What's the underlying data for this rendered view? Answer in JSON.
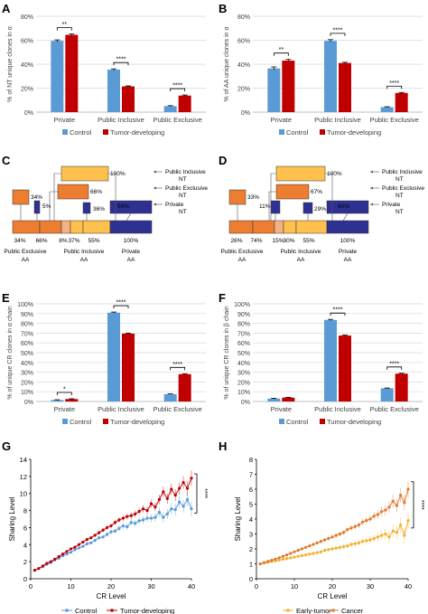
{
  "colors": {
    "control": "#5b9bd5",
    "tumor": "#c00000",
    "early": "#f2b230",
    "cancer": "#e07a2f",
    "flow_yellow": "#ffc04d",
    "flow_orange_light": "#f4b183",
    "flow_orange": "#ed7d31",
    "flow_blue": "#2e3192",
    "grid": "#d9d9d9"
  },
  "panels": {
    "A": {
      "label": "A"
    },
    "B": {
      "label": "B"
    },
    "C": {
      "label": "C"
    },
    "D": {
      "label": "D"
    },
    "E": {
      "label": "E"
    },
    "F": {
      "label": "F"
    },
    "G": {
      "label": "G"
    },
    "H": {
      "label": "H"
    }
  },
  "chart_data": [
    {
      "id": "A",
      "type": "bar",
      "ylabel": "% of NT unique clones in α",
      "categories": [
        "Private",
        "Public Inclusive",
        "Public Exclusive"
      ],
      "series": [
        {
          "name": "Control",
          "values": [
            59.5,
            35.5,
            5.0
          ],
          "errors": [
            0.8,
            0.6,
            0.4
          ]
        },
        {
          "name": "Tumor-developing",
          "values": [
            64.5,
            21.5,
            13.8
          ],
          "errors": [
            0.7,
            0.4,
            0.5
          ]
        }
      ],
      "ylim": [
        0,
        80
      ],
      "yticks": [
        "0%",
        "20%",
        "40%",
        "60%",
        "80%"
      ],
      "significance": [
        "**",
        "****",
        "****"
      ],
      "legend": "bottom",
      "grid": true
    },
    {
      "id": "B",
      "type": "bar",
      "ylabel": "% of AA unique clones in α",
      "categories": [
        "Private",
        "Public Inclusive",
        "Public Exclusive"
      ],
      "series": [
        {
          "name": "Control",
          "values": [
            36.5,
            59.5,
            4.2
          ],
          "errors": [
            1.2,
            1.0,
            0.3
          ]
        },
        {
          "name": "Tumor-developing",
          "values": [
            43.0,
            41.0,
            16.0
          ],
          "errors": [
            1.0,
            0.6,
            0.4
          ]
        }
      ],
      "ylim": [
        0,
        80
      ],
      "yticks": [
        "0%",
        "20%",
        "40%",
        "60%",
        "80%"
      ],
      "significance": [
        "**",
        "****",
        "****"
      ],
      "legend": "bottom",
      "grid": true
    },
    {
      "id": "E",
      "type": "bar",
      "ylabel": "% of unique CR clones in α chain",
      "categories": [
        "Private",
        "Public Inclusive",
        "Public Exclusive"
      ],
      "series": [
        {
          "name": "Control",
          "values": [
            1.5,
            91.0,
            7.5
          ],
          "errors": [
            0.3,
            0.6,
            0.3
          ]
        },
        {
          "name": "Tumor-developing",
          "values": [
            2.5,
            69.5,
            28.0
          ],
          "errors": [
            0.3,
            0.5,
            0.4
          ]
        }
      ],
      "ylim": [
        0,
        100
      ],
      "yticks": [
        "0%",
        "10%",
        "20%",
        "30%",
        "40%",
        "50%",
        "60%",
        "70%",
        "80%",
        "90%",
        "100%"
      ],
      "significance": [
        "*",
        "****",
        "****"
      ],
      "legend": "bottom",
      "grid": true
    },
    {
      "id": "F",
      "type": "bar",
      "ylabel": "% of unique CR clones in β chain",
      "categories": [
        "Private",
        "Public Inclusive",
        "Public Exclusive"
      ],
      "series": [
        {
          "name": "Control",
          "values": [
            3.0,
            83.5,
            13.5
          ],
          "errors": [
            0.3,
            0.6,
            0.3
          ]
        },
        {
          "name": "Tumor-developing",
          "values": [
            4.0,
            67.5,
            28.5
          ],
          "errors": [
            0.3,
            0.5,
            0.4
          ]
        }
      ],
      "ylim": [
        0,
        100
      ],
      "yticks": [
        "0%",
        "10%",
        "20%",
        "30%",
        "40%",
        "50%",
        "60%",
        "70%",
        "80%",
        "90%",
        "100%"
      ],
      "significance": [
        "",
        "****",
        "****"
      ],
      "legend": "bottom",
      "grid": true
    },
    {
      "id": "G",
      "type": "line",
      "xlabel": "CR Level",
      "ylabel": "Sharing Level",
      "xlim": [
        0,
        40
      ],
      "ylim": [
        0,
        14
      ],
      "xticks": [
        0,
        10,
        20,
        30,
        40
      ],
      "yticks": [
        0,
        2,
        4,
        6,
        8,
        10,
        12,
        14
      ],
      "x": [
        1,
        2,
        3,
        4,
        5,
        6,
        7,
        8,
        9,
        10,
        11,
        12,
        13,
        14,
        15,
        16,
        17,
        18,
        19,
        20,
        21,
        22,
        23,
        24,
        25,
        26,
        27,
        28,
        29,
        30,
        31,
        32,
        33,
        34,
        35,
        36,
        37,
        38,
        39,
        40
      ],
      "series": [
        {
          "name": "Control",
          "values": [
            1.0,
            1.2,
            1.4,
            1.7,
            1.9,
            2.2,
            2.4,
            2.7,
            2.9,
            3.1,
            3.4,
            3.6,
            3.8,
            4.1,
            4.2,
            4.5,
            4.8,
            4.9,
            5.2,
            5.5,
            5.6,
            5.9,
            6.2,
            6.1,
            6.6,
            6.5,
            6.8,
            6.9,
            7.1,
            7.1,
            7.2,
            7.8,
            7.2,
            7.6,
            8.2,
            8.1,
            9.0,
            8.5,
            9.3,
            8.2
          ],
          "errors": [
            0.1,
            0.1,
            0.1,
            0.1,
            0.1,
            0.1,
            0.1,
            0.1,
            0.1,
            0.1,
            0.15,
            0.15,
            0.15,
            0.2,
            0.2,
            0.2,
            0.25,
            0.25,
            0.25,
            0.3,
            0.3,
            0.3,
            0.35,
            0.35,
            0.4,
            0.4,
            0.4,
            0.45,
            0.45,
            0.5,
            0.5,
            0.55,
            0.6,
            0.6,
            0.65,
            0.7,
            0.7,
            0.75,
            0.8,
            0.9
          ]
        },
        {
          "name": "Tumor-developing",
          "values": [
            1.0,
            1.2,
            1.5,
            1.8,
            2.0,
            2.3,
            2.6,
            2.9,
            3.2,
            3.5,
            3.7,
            4.0,
            4.3,
            4.6,
            4.8,
            5.1,
            5.4,
            5.7,
            6.0,
            6.2,
            6.6,
            6.9,
            7.1,
            7.3,
            7.4,
            7.6,
            7.9,
            8.2,
            8.0,
            8.8,
            8.4,
            9.3,
            10.2,
            9.4,
            10.5,
            9.8,
            10.6,
            11.3,
            10.6,
            11.8
          ],
          "errors": [
            0.1,
            0.1,
            0.1,
            0.1,
            0.1,
            0.1,
            0.1,
            0.1,
            0.1,
            0.1,
            0.15,
            0.15,
            0.15,
            0.2,
            0.2,
            0.2,
            0.25,
            0.25,
            0.25,
            0.3,
            0.3,
            0.3,
            0.35,
            0.35,
            0.4,
            0.4,
            0.4,
            0.45,
            0.45,
            0.5,
            0.5,
            0.55,
            0.6,
            0.6,
            0.65,
            0.7,
            0.7,
            0.75,
            0.8,
            0.9
          ]
        }
      ],
      "significance": "****",
      "legend": "bottom",
      "grid": false
    },
    {
      "id": "H",
      "type": "line",
      "xlabel": "CR Level",
      "ylabel": "Sharing Level",
      "xlim": [
        0,
        40
      ],
      "ylim": [
        0,
        8
      ],
      "xticks": [
        0,
        10,
        20,
        30,
        40
      ],
      "yticks": [
        0,
        1,
        2,
        3,
        4,
        5,
        6,
        7,
        8
      ],
      "x": [
        1,
        2,
        3,
        4,
        5,
        6,
        7,
        8,
        9,
        10,
        11,
        12,
        13,
        14,
        15,
        16,
        17,
        18,
        19,
        20,
        21,
        22,
        23,
        24,
        25,
        26,
        27,
        28,
        29,
        30,
        31,
        32,
        33,
        34,
        35,
        36,
        37,
        38,
        39,
        40
      ],
      "series": [
        {
          "name": "Early-tumor",
          "values": [
            1.0,
            1.05,
            1.1,
            1.15,
            1.2,
            1.25,
            1.3,
            1.35,
            1.4,
            1.45,
            1.5,
            1.55,
            1.6,
            1.65,
            1.7,
            1.75,
            1.8,
            1.9,
            1.95,
            2.0,
            2.05,
            2.1,
            2.15,
            2.2,
            2.3,
            2.35,
            2.4,
            2.5,
            2.55,
            2.6,
            2.7,
            2.8,
            2.9,
            3.0,
            2.8,
            3.2,
            3.1,
            3.6,
            2.9,
            3.9
          ],
          "errors": [
            0.05,
            0.05,
            0.05,
            0.05,
            0.06,
            0.06,
            0.07,
            0.07,
            0.08,
            0.08,
            0.09,
            0.09,
            0.1,
            0.1,
            0.11,
            0.11,
            0.12,
            0.12,
            0.13,
            0.13,
            0.14,
            0.15,
            0.16,
            0.17,
            0.18,
            0.19,
            0.2,
            0.22,
            0.24,
            0.26,
            0.28,
            0.3,
            0.33,
            0.36,
            0.39,
            0.42,
            0.45,
            0.48,
            0.51,
            0.55
          ]
        },
        {
          "name": "Cancer",
          "values": [
            1.0,
            1.08,
            1.16,
            1.24,
            1.32,
            1.4,
            1.5,
            1.6,
            1.7,
            1.8,
            1.9,
            2.0,
            2.1,
            2.2,
            2.3,
            2.4,
            2.5,
            2.6,
            2.7,
            2.8,
            2.9,
            3.0,
            3.1,
            3.3,
            3.4,
            3.5,
            3.6,
            3.8,
            3.9,
            4.0,
            4.2,
            4.3,
            4.5,
            4.6,
            4.8,
            5.2,
            4.9,
            5.6,
            5.1,
            6.0
          ],
          "errors": [
            0.05,
            0.05,
            0.05,
            0.05,
            0.06,
            0.06,
            0.07,
            0.07,
            0.08,
            0.08,
            0.09,
            0.09,
            0.1,
            0.1,
            0.11,
            0.11,
            0.12,
            0.12,
            0.13,
            0.13,
            0.14,
            0.15,
            0.16,
            0.17,
            0.18,
            0.19,
            0.2,
            0.22,
            0.24,
            0.26,
            0.28,
            0.3,
            0.33,
            0.36,
            0.39,
            0.42,
            0.45,
            0.48,
            0.51,
            0.55
          ]
        }
      ],
      "significance": "****",
      "legend": "bottom",
      "grid": false
    }
  ],
  "diagrams": {
    "C": {
      "top_bars": [
        "100%",
        "66%",
        "34%",
        "5%",
        "36%",
        "59%"
      ],
      "segment_labels": [
        "34%",
        "66%",
        "8%",
        "37%",
        "55%",
        "100%"
      ],
      "group_labels": [
        {
          "line1": "Public Exclusive",
          "line2": "AA"
        },
        {
          "line1": "Public Inclusive",
          "line2": "AA"
        },
        {
          "line1": "Private",
          "line2": "AA"
        }
      ],
      "legend_items": [
        {
          "line1": "Public Inclusive",
          "line2": "NT"
        },
        {
          "line1": "Public Exclusive",
          "line2": "NT"
        },
        {
          "line1": "Private",
          "line2": "NT"
        }
      ]
    },
    "D": {
      "top_bars": [
        "100%",
        "67%",
        "33%",
        "11%",
        "29%",
        "60%"
      ],
      "segment_labels": [
        "26%",
        "74%",
        "15%",
        "30%",
        "55%",
        "100%"
      ],
      "group_labels": [
        {
          "line1": "Public Exclusive",
          "line2": "AA"
        },
        {
          "line1": "Public Inclusive",
          "line2": "AA"
        },
        {
          "line1": "Private",
          "line2": "AA"
        }
      ],
      "legend_items": [
        {
          "line1": "Public Inclusive",
          "line2": "NT"
        },
        {
          "line1": "Public Exclusive",
          "line2": "NT"
        },
        {
          "line1": "Private",
          "line2": "NT"
        }
      ]
    }
  }
}
